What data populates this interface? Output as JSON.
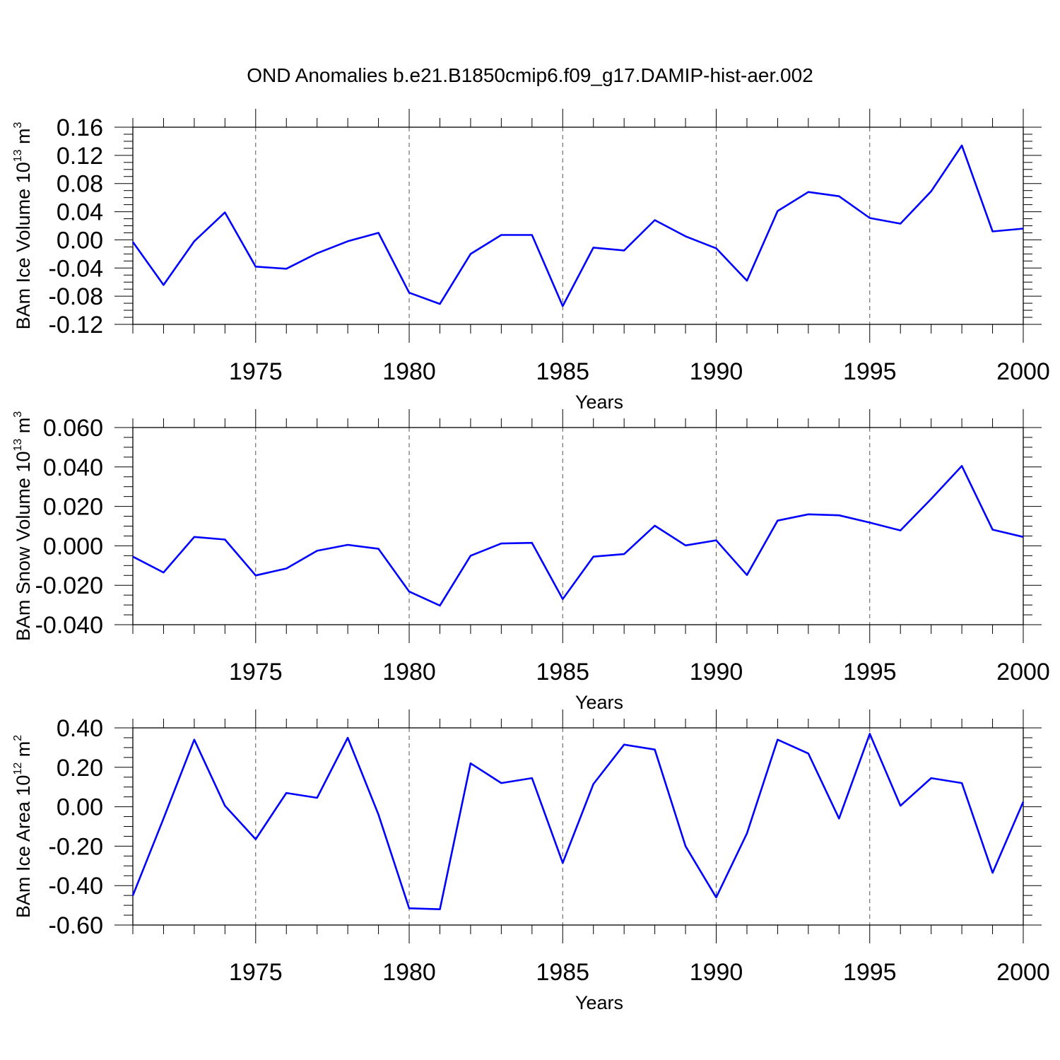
{
  "chart_data": {
    "type": "line",
    "title": "OND Anomalies b.e21.B1850cmip6.f09_g17.DAMIP-hist-aer.002",
    "line_color": "#0000ff",
    "grid": "dashed vertical lines at major x ticks",
    "x": [
      1971,
      1972,
      1973,
      1974,
      1975,
      1976,
      1977,
      1978,
      1979,
      1980,
      1981,
      1982,
      1983,
      1984,
      1985,
      1986,
      1987,
      1988,
      1989,
      1990,
      1991,
      1992,
      1993,
      1994,
      1995,
      1996,
      1997,
      1998,
      1999,
      2000
    ],
    "xlim": [
      1971,
      2000
    ],
    "xticks": [
      1975,
      1980,
      1985,
      1990,
      1995,
      2000
    ],
    "xtick_labels": [
      "1975",
      "1980",
      "1985",
      "1990",
      "1995",
      "2000"
    ],
    "panels": [
      {
        "xlabel": "Years",
        "ylabel": {
          "main": "BAm Ice Volume 10",
          "sup": "13",
          "unit": " m",
          "unit_sup": "3"
        },
        "ylim": [
          -0.12,
          0.16
        ],
        "yticks": [
          -0.12,
          -0.08,
          -0.04,
          0.0,
          0.04,
          0.08,
          0.12,
          0.16
        ],
        "ytick_labels": [
          "-0.12",
          "-0.08",
          "-0.04",
          "0.00",
          "0.04",
          "0.08",
          "0.12",
          "0.16"
        ],
        "values": [
          -0.003,
          -0.064,
          -0.002,
          0.039,
          -0.038,
          -0.041,
          -0.019,
          -0.002,
          0.01,
          -0.075,
          -0.091,
          -0.02,
          0.007,
          0.007,
          -0.094,
          -0.011,
          -0.015,
          0.028,
          0.005,
          -0.012,
          -0.058,
          0.041,
          0.068,
          0.062,
          0.031,
          0.023,
          0.069,
          0.134,
          0.012,
          0.016
        ]
      },
      {
        "xlabel": "Years",
        "ylabel": {
          "main": "BAm Snow Volume 10",
          "sup": "13",
          "unit": " m",
          "unit_sup": "3"
        },
        "ylim": [
          -0.04,
          0.06
        ],
        "yticks": [
          -0.04,
          -0.02,
          0.0,
          0.02,
          0.04,
          0.06
        ],
        "ytick_labels": [
          "-0.040",
          "-0.020",
          "0.000",
          "0.020",
          "0.040",
          "0.060"
        ],
        "values": [
          -0.0055,
          -0.0135,
          0.0045,
          0.0032,
          -0.015,
          -0.0115,
          -0.0025,
          0.0005,
          -0.0015,
          -0.0232,
          -0.0303,
          -0.005,
          0.0012,
          0.0015,
          -0.027,
          -0.0055,
          -0.0042,
          0.0102,
          0.0002,
          0.0028,
          -0.0148,
          0.0128,
          0.016,
          0.0155,
          0.0118,
          0.0078,
          0.0238,
          0.0405,
          0.0082,
          0.0045
        ]
      },
      {
        "xlabel": "Years",
        "ylabel": {
          "main": "BAm Ice Area 10",
          "sup": "12",
          "unit": " m",
          "unit_sup": "2"
        },
        "ylim": [
          -0.6,
          0.4
        ],
        "yticks": [
          -0.6,
          -0.4,
          -0.2,
          0.0,
          0.2,
          0.4
        ],
        "ytick_labels": [
          "-0.60",
          "-0.40",
          "-0.20",
          "0.00",
          "0.20",
          "0.40"
        ],
        "values": [
          -0.45,
          -0.06,
          0.34,
          0.005,
          -0.165,
          0.07,
          0.045,
          0.35,
          -0.04,
          -0.515,
          -0.52,
          0.22,
          0.12,
          0.145,
          -0.285,
          0.115,
          0.315,
          0.29,
          -0.2,
          -0.46,
          -0.135,
          0.34,
          0.27,
          -0.06,
          0.37,
          0.005,
          0.145,
          0.12,
          -0.335,
          0.025
        ]
      }
    ]
  }
}
